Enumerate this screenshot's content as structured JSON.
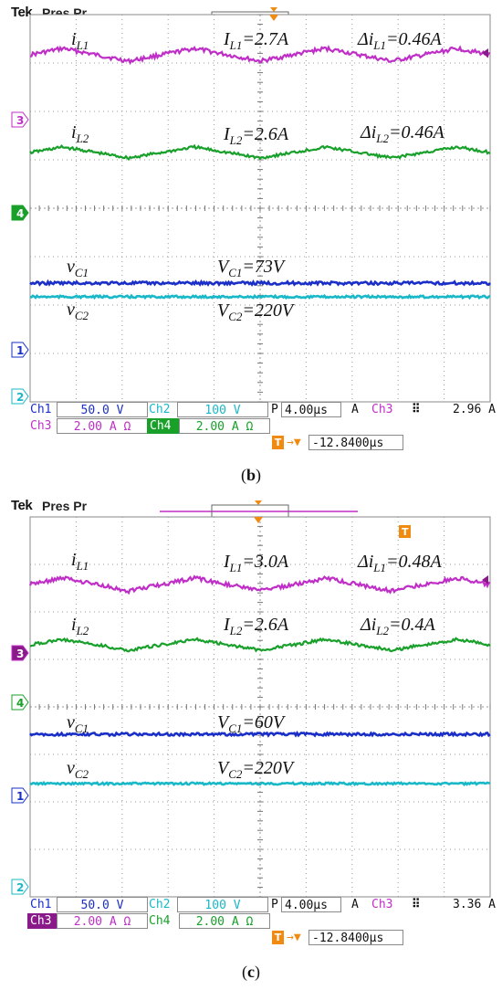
{
  "header": {
    "brand": "Tek",
    "mode": "Pres Pr"
  },
  "chart_data": [
    {
      "type": "line",
      "panel": "b",
      "caption_open": "(",
      "caption_letter": "b",
      "caption_close": ")",
      "channels": {
        "ch1": {
          "label": "Ch1",
          "scale": "50.0 V",
          "color": "#1a2fc8"
        },
        "ch2": {
          "label": "Ch2",
          "scale": "100 V",
          "color": "#18b8c8"
        },
        "ch3": {
          "label": "Ch3",
          "scale": "2.00 A Ω",
          "color": "#c02ec8"
        },
        "ch4": {
          "label": "Ch4",
          "scale": "2.00 A Ω",
          "color": "#18a02a"
        }
      },
      "timebase": "4.00µs",
      "trigger": {
        "source": "Ch3",
        "value": "2.96 A"
      },
      "trigger_delay": "-12.8400µs",
      "annotations": {
        "il1": "i",
        "il1_sub": "L1",
        "IL1": "I",
        "IL1_sub": "L1",
        "IL1_val": "=2.7A",
        "dIL1": "Δi",
        "dIL1_sub": "L1",
        "dIL1_val": "=0.46A",
        "il2": "i",
        "il2_sub": "L2",
        "IL2": "I",
        "IL2_sub": "L2",
        "IL2_val": "=2.6A",
        "dIL2": "Δi",
        "dIL2_sub": "L2",
        "dIL2_val": "=0.46A",
        "vc1": "v",
        "vc1_sub": "C1",
        "VC1": "V",
        "VC1_sub": "C1",
        "VC1_val": "=73V",
        "vc2": "v",
        "vc2_sub": "C2",
        "VC2": "V",
        "VC2_sub": "C2",
        "VC2_val": "=220V"
      },
      "series": [
        {
          "name": "iL1",
          "channel": "ch3",
          "mean_A": 2.7,
          "ripple_A": 0.46
        },
        {
          "name": "iL2",
          "channel": "ch4",
          "mean_A": 2.6,
          "ripple_A": 0.46
        },
        {
          "name": "vC1",
          "channel": "ch1",
          "mean_V": 73
        },
        {
          "name": "vC2",
          "channel": "ch2",
          "mean_V": 220
        }
      ]
    },
    {
      "type": "line",
      "panel": "c",
      "caption_open": "(",
      "caption_letter": "c",
      "caption_close": ")",
      "channels": {
        "ch1": {
          "label": "Ch1",
          "scale": "50.0 V",
          "color": "#1a2fc8"
        },
        "ch2": {
          "label": "Ch2",
          "scale": "100 V",
          "color": "#18b8c8"
        },
        "ch3": {
          "label": "Ch3",
          "scale": "2.00 A Ω",
          "color": "#c02ec8"
        },
        "ch4": {
          "label": "Ch4",
          "scale": "2.00 A Ω",
          "color": "#18a02a"
        }
      },
      "timebase": "4.00µs",
      "trigger": {
        "source": "Ch3",
        "value": "3.36 A"
      },
      "trigger_delay": "-12.8400µs",
      "annotations": {
        "il1": "i",
        "il1_sub": "L1",
        "IL1": "I",
        "IL1_sub": "L1",
        "IL1_val": "=3.0A",
        "dIL1": "Δi",
        "dIL1_sub": "L1",
        "dIL1_val": "=0.48A",
        "il2": "i",
        "il2_sub": "L2",
        "IL2": "I",
        "IL2_sub": "L2",
        "IL2_val": "=2.6A",
        "dIL2": "Δi",
        "dIL2_sub": "L2",
        "dIL2_val": "=0.4A",
        "vc1": "v",
        "vc1_sub": "C1",
        "VC1": "V",
        "VC1_sub": "C1",
        "VC1_val": "=60V",
        "vc2": "v",
        "vc2_sub": "C2",
        "VC2": "V",
        "VC2_sub": "C2",
        "VC2_val": "=220V"
      },
      "series": [
        {
          "name": "iL1",
          "channel": "ch3",
          "mean_A": 3.0,
          "ripple_A": 0.48
        },
        {
          "name": "iL2",
          "channel": "ch4",
          "mean_A": 2.6,
          "ripple_A": 0.4
        },
        {
          "name": "vC1",
          "channel": "ch1",
          "mean_V": 60
        },
        {
          "name": "vC2",
          "channel": "ch2",
          "mean_V": 220
        }
      ]
    }
  ],
  "ground_markers": {
    "ch1": "1",
    "ch2": "2",
    "ch3": "3",
    "ch4": "4"
  },
  "trigger_marker": "T",
  "scope_colors": {
    "grid": "#9a9a9a",
    "frame": "#8a8a8a",
    "text": "#111111",
    "trigger": "#f08a10"
  }
}
